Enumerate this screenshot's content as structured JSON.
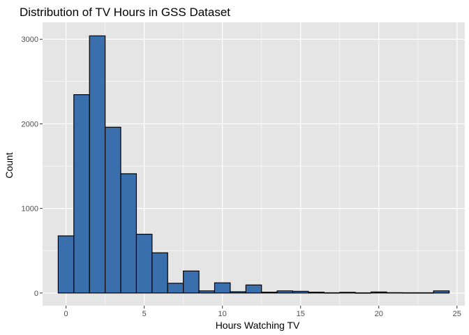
{
  "chart_data": {
    "type": "bar",
    "title": "Distribution of TV Hours in GSS Dataset",
    "xlabel": "Hours Watching TV",
    "ylabel": "Count",
    "xlim": [
      -1.5,
      25.5
    ],
    "ylim": [
      -150,
      3200
    ],
    "xticks": [
      0,
      5,
      10,
      15,
      20,
      25
    ],
    "yticks": [
      0,
      1000,
      2000,
      3000
    ],
    "bin_width": 1,
    "bins": [
      {
        "x": 0,
        "count": 675
      },
      {
        "x": 1,
        "count": 2345
      },
      {
        "x": 2,
        "count": 3040
      },
      {
        "x": 3,
        "count": 1960
      },
      {
        "x": 4,
        "count": 1410
      },
      {
        "x": 5,
        "count": 695
      },
      {
        "x": 6,
        "count": 475
      },
      {
        "x": 7,
        "count": 115
      },
      {
        "x": 8,
        "count": 260
      },
      {
        "x": 9,
        "count": 25
      },
      {
        "x": 10,
        "count": 120
      },
      {
        "x": 11,
        "count": 15
      },
      {
        "x": 12,
        "count": 95
      },
      {
        "x": 13,
        "count": 10
      },
      {
        "x": 14,
        "count": 25
      },
      {
        "x": 15,
        "count": 20
      },
      {
        "x": 16,
        "count": 10
      },
      {
        "x": 17,
        "count": 3
      },
      {
        "x": 18,
        "count": 8
      },
      {
        "x": 19,
        "count": 2
      },
      {
        "x": 20,
        "count": 12
      },
      {
        "x": 21,
        "count": 4
      },
      {
        "x": 22,
        "count": 3
      },
      {
        "x": 23,
        "count": 3
      },
      {
        "x": 24,
        "count": 25
      }
    ],
    "grid": true,
    "colors": {
      "panel_background": "#e5e5e5",
      "grid": "#ffffff",
      "bar_fill": "#3a6fae",
      "bar_outline": "#000000"
    }
  }
}
